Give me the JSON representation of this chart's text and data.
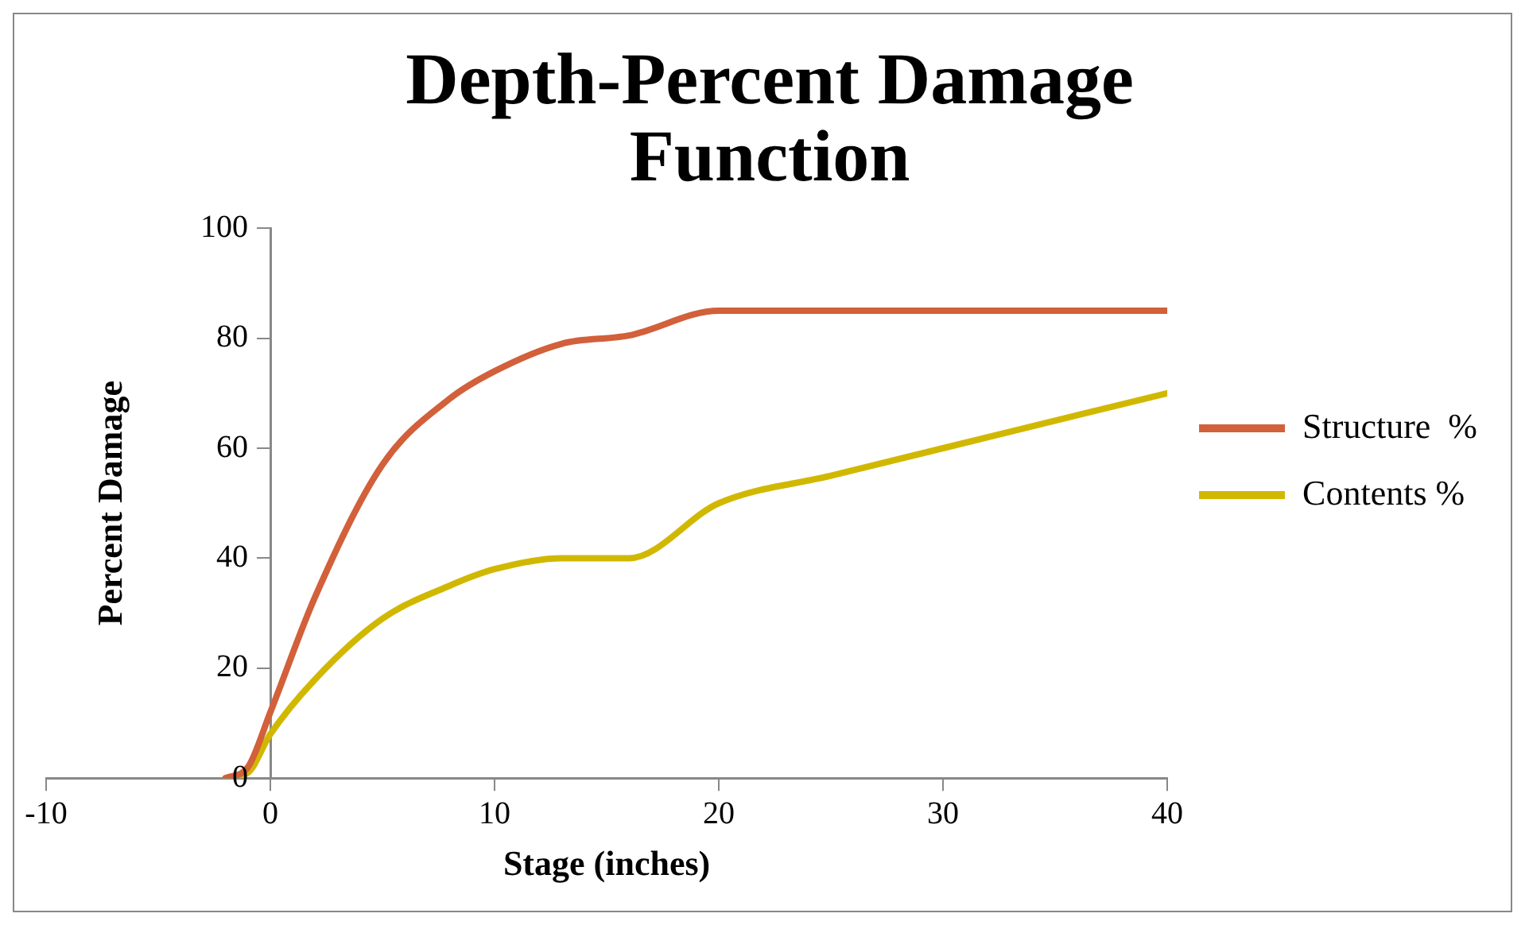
{
  "chart_data": {
    "type": "line",
    "title": "Depth-Percent Damage Function",
    "xlabel": "Stage (inches)",
    "ylabel": "Percent Damage",
    "xlim": [
      -10,
      40
    ],
    "xticks": [
      -10,
      0,
      10,
      20,
      30,
      40
    ],
    "ylim": [
      0,
      100
    ],
    "yticks": [
      0,
      20,
      40,
      60,
      80,
      100
    ],
    "legend": "right",
    "marker": "none",
    "line_style": "solid",
    "series": [
      {
        "name": "Structure  %",
        "color": "#d2603a",
        "x": [
          -2,
          -1,
          0,
          2,
          5,
          8,
          10,
          13,
          16,
          20,
          25,
          30,
          40
        ],
        "values": [
          0,
          2,
          12,
          33,
          57,
          69,
          74,
          79,
          80.5,
          85,
          85,
          85,
          85
        ]
      },
      {
        "name": "Contents %",
        "color": "#d1b800",
        "x": [
          -2,
          -1,
          0,
          2,
          5,
          8,
          10,
          13,
          16,
          20,
          25,
          30,
          40
        ],
        "values": [
          0,
          1,
          8,
          18,
          29,
          35,
          38,
          40,
          40,
          50,
          55,
          60,
          70
        ]
      }
    ]
  }
}
